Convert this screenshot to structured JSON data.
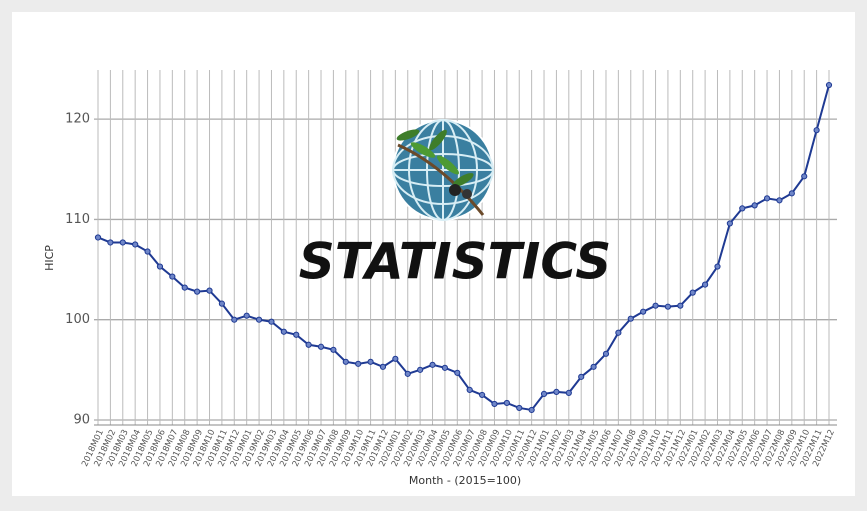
{
  "chart_data": {
    "type": "line",
    "watermark": "STATISTICS",
    "x_label": "Month - (2015=100)",
    "y_label": "HICP",
    "categories": [
      "2018M01",
      "2018M02",
      "2018M03",
      "2018M04",
      "2018M05",
      "2018M06",
      "2018M07",
      "2018M08",
      "2018M09",
      "2018M10",
      "2018M11",
      "2018M12",
      "2019M01",
      "2019M02",
      "2019M03",
      "2019M04",
      "2019M05",
      "2019M06",
      "2019M07",
      "2019M08",
      "2019M09",
      "2019M10",
      "2019M11",
      "2019M12",
      "2020M01",
      "2020M02",
      "2020M03",
      "2020M04",
      "2020M05",
      "2020M06",
      "2020M07",
      "2020M08",
      "2020M09",
      "2020M10",
      "2020M11",
      "2020M12",
      "2021M01",
      "2021M02",
      "2021M03",
      "2021M04",
      "2021M05",
      "2021M06",
      "2021M07",
      "2021M08",
      "2021M09",
      "2021M10",
      "2021M11",
      "2021M12",
      "2022M01",
      "2022M02",
      "2022M03",
      "2022M04",
      "2022M05",
      "2022M06",
      "2022M07",
      "2022M08",
      "2022M09",
      "2022M10",
      "2022M11",
      "2022M12"
    ],
    "series": [
      {
        "name": "HICP",
        "color": "#1f3a93",
        "values": [
          108.2,
          107.7,
          107.7,
          107.5,
          106.8,
          105.3,
          104.3,
          103.2,
          102.8,
          102.9,
          101.6,
          100.0,
          100.4,
          100.0,
          99.8,
          98.8,
          98.5,
          97.5,
          97.3,
          97.0,
          95.8,
          95.6,
          95.8,
          95.3,
          96.1,
          94.6,
          95.0,
          95.5,
          95.2,
          94.7,
          93.0,
          92.5,
          91.6,
          91.7,
          91.2,
          91.0,
          92.6,
          92.8,
          92.7,
          94.3,
          95.3,
          96.6,
          98.7,
          100.1,
          100.8,
          101.4,
          101.3,
          101.4,
          102.7,
          103.5,
          105.3,
          109.6,
          111.1,
          111.4,
          112.1,
          111.9,
          112.6,
          114.3,
          118.9,
          123.4
        ]
      }
    ],
    "ylim": [
      89.5,
      124.9
    ],
    "yticks": [
      90,
      100,
      110,
      120
    ],
    "grid": true
  }
}
